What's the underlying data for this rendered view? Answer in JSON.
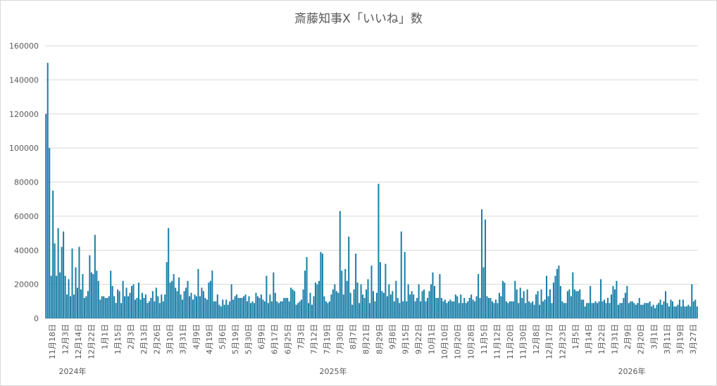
{
  "chart_data": {
    "type": "bar",
    "title": "斎藤知事X「いいね」数",
    "xlabel": "",
    "ylabel": "",
    "ylim": [
      0,
      160000
    ],
    "yticks": [
      0,
      20000,
      40000,
      60000,
      80000,
      100000,
      120000,
      140000,
      160000
    ],
    "grid": true,
    "legend": "none",
    "bar_color": "#1b7fa8",
    "grid_color": "#d9d9d9",
    "x_tick_labels": [
      "11月18日",
      "12月3日",
      "12月14日",
      "12月22日",
      "1月1日",
      "1月15日",
      "2月3日",
      "2月13日",
      "2月26日",
      "3月10日",
      "3月31日",
      "4月9日",
      "4月19日",
      "5月6日",
      "5月19日",
      "5月30日",
      "6月9日",
      "6月17日",
      "6月25日",
      "7月3日",
      "7月12日",
      "7月19日",
      "7月30日",
      "8月7日",
      "8月21日",
      "8月29日",
      "9月8日",
      "9月15日",
      "9月22日",
      "10月1日",
      "10月10日",
      "10月20日",
      "10月28日",
      "11月5日",
      "11月12日",
      "11月20日",
      "11月30日",
      "12月8日",
      "12月17日",
      "12月23日",
      "1月5日",
      "1月14日",
      "1月22日",
      "1月31日",
      "2月9日",
      "2月20日",
      "3月1日",
      "3月11日",
      "3月19日",
      "3月27日"
    ],
    "years": [
      "2024年",
      "2025年",
      "2026年"
    ],
    "values": [
      120000,
      150000,
      100000,
      25000,
      75000,
      44000,
      25000,
      53000,
      27000,
      42000,
      51000,
      25000,
      14000,
      23000,
      13000,
      41000,
      14000,
      30000,
      18000,
      42000,
      17000,
      26000,
      12000,
      13000,
      16000,
      37000,
      27000,
      26000,
      49000,
      28000,
      22000,
      11000,
      13000,
      13000,
      12000,
      12000,
      13000,
      28000,
      19000,
      13000,
      9000,
      17000,
      16000,
      9000,
      22000,
      13000,
      18000,
      13000,
      15000,
      19000,
      20000,
      11000,
      12000,
      21000,
      11000,
      15000,
      12000,
      14000,
      9000,
      10000,
      12000,
      16000,
      10000,
      18000,
      13000,
      9000,
      14000,
      10000,
      14000,
      33000,
      53000,
      21000,
      22000,
      26000,
      18000,
      16000,
      24000,
      14000,
      11000,
      16000,
      18000,
      22000,
      13000,
      15000,
      11000,
      14000,
      13000,
      29000,
      13000,
      18000,
      16000,
      12000,
      11000,
      21000,
      22000,
      28000,
      10000,
      10000,
      14000,
      8000,
      7000,
      11000,
      8000,
      11000,
      8000,
      10000,
      20000,
      11000,
      13000,
      14000,
      12000,
      12000,
      12000,
      13000,
      14000,
      10000,
      13000,
      9000,
      10000,
      9000,
      15000,
      13000,
      12000,
      14000,
      11000,
      10000,
      25000,
      9000,
      14000,
      10000,
      27000,
      15000,
      10000,
      9000,
      10000,
      10000,
      12000,
      12000,
      12000,
      10000,
      18000,
      17000,
      16000,
      8000,
      9000,
      10000,
      11000,
      17000,
      28000,
      36000,
      9000,
      15000,
      8000,
      13000,
      21000,
      20000,
      22000,
      39000,
      38000,
      13000,
      10000,
      9000,
      10000,
      14000,
      17000,
      20000,
      16000,
      15000,
      63000,
      28000,
      14000,
      29000,
      22000,
      48000,
      15000,
      8000,
      17000,
      38000,
      21000,
      9000,
      20000,
      14000,
      12000,
      17000,
      23000,
      9000,
      31000,
      16000,
      10000,
      15000,
      79000,
      33000,
      16000,
      15000,
      32000,
      13000,
      20000,
      14000,
      16000,
      10000,
      22000,
      12000,
      9000,
      51000,
      10000,
      39000,
      10000,
      20000,
      14000,
      16000,
      14000,
      10000,
      12000,
      20000,
      10000,
      16000,
      17000,
      10000,
      12000,
      16000,
      20000,
      27000,
      19000,
      12000,
      12000,
      26000,
      12000,
      10000,
      11000,
      9000,
      10000,
      11000,
      10000,
      10000,
      14000,
      13000,
      9000,
      14000,
      9000,
      12000,
      9000,
      10000,
      12000,
      14000,
      11000,
      10000,
      13000,
      26000,
      12000,
      64000,
      30000,
      58000,
      13000,
      12000,
      12000,
      10000,
      9000,
      11000,
      9000,
      15000,
      13000,
      22000,
      21000,
      10000,
      9000,
      10000,
      10000,
      10000,
      22000,
      17000,
      9000,
      18000,
      12000,
      16000,
      9000,
      17000,
      10000,
      9000,
      10000,
      8000,
      14000,
      16000,
      8000,
      17000,
      10000,
      11000,
      25000,
      13000,
      17000,
      9000,
      21000,
      25000,
      29000,
      31000,
      19000,
      10000,
      9000,
      9000,
      16000,
      17000,
      13000,
      27000,
      17000,
      16000,
      16000,
      17000,
      11000,
      11000,
      7000,
      9000,
      9000,
      19000,
      9000,
      9000,
      10000,
      9000,
      10000,
      23000,
      10000,
      11000,
      9000,
      12000,
      9000,
      14000,
      19000,
      17000,
      22000,
      8000,
      9000,
      9000,
      12000,
      15000,
      19000,
      9000,
      10000,
      10000,
      9000,
      8000,
      9000,
      12000,
      8000,
      8000,
      9000,
      9000,
      9000,
      10000,
      7000,
      8000,
      6000,
      8000,
      9000,
      11000,
      8000,
      10000,
      16000,
      9000,
      7000,
      11000,
      10000,
      7000,
      7000,
      8000,
      11000,
      7000,
      11000,
      7000,
      7000,
      8000,
      7000,
      20000,
      10000,
      11000,
      7000
    ]
  }
}
